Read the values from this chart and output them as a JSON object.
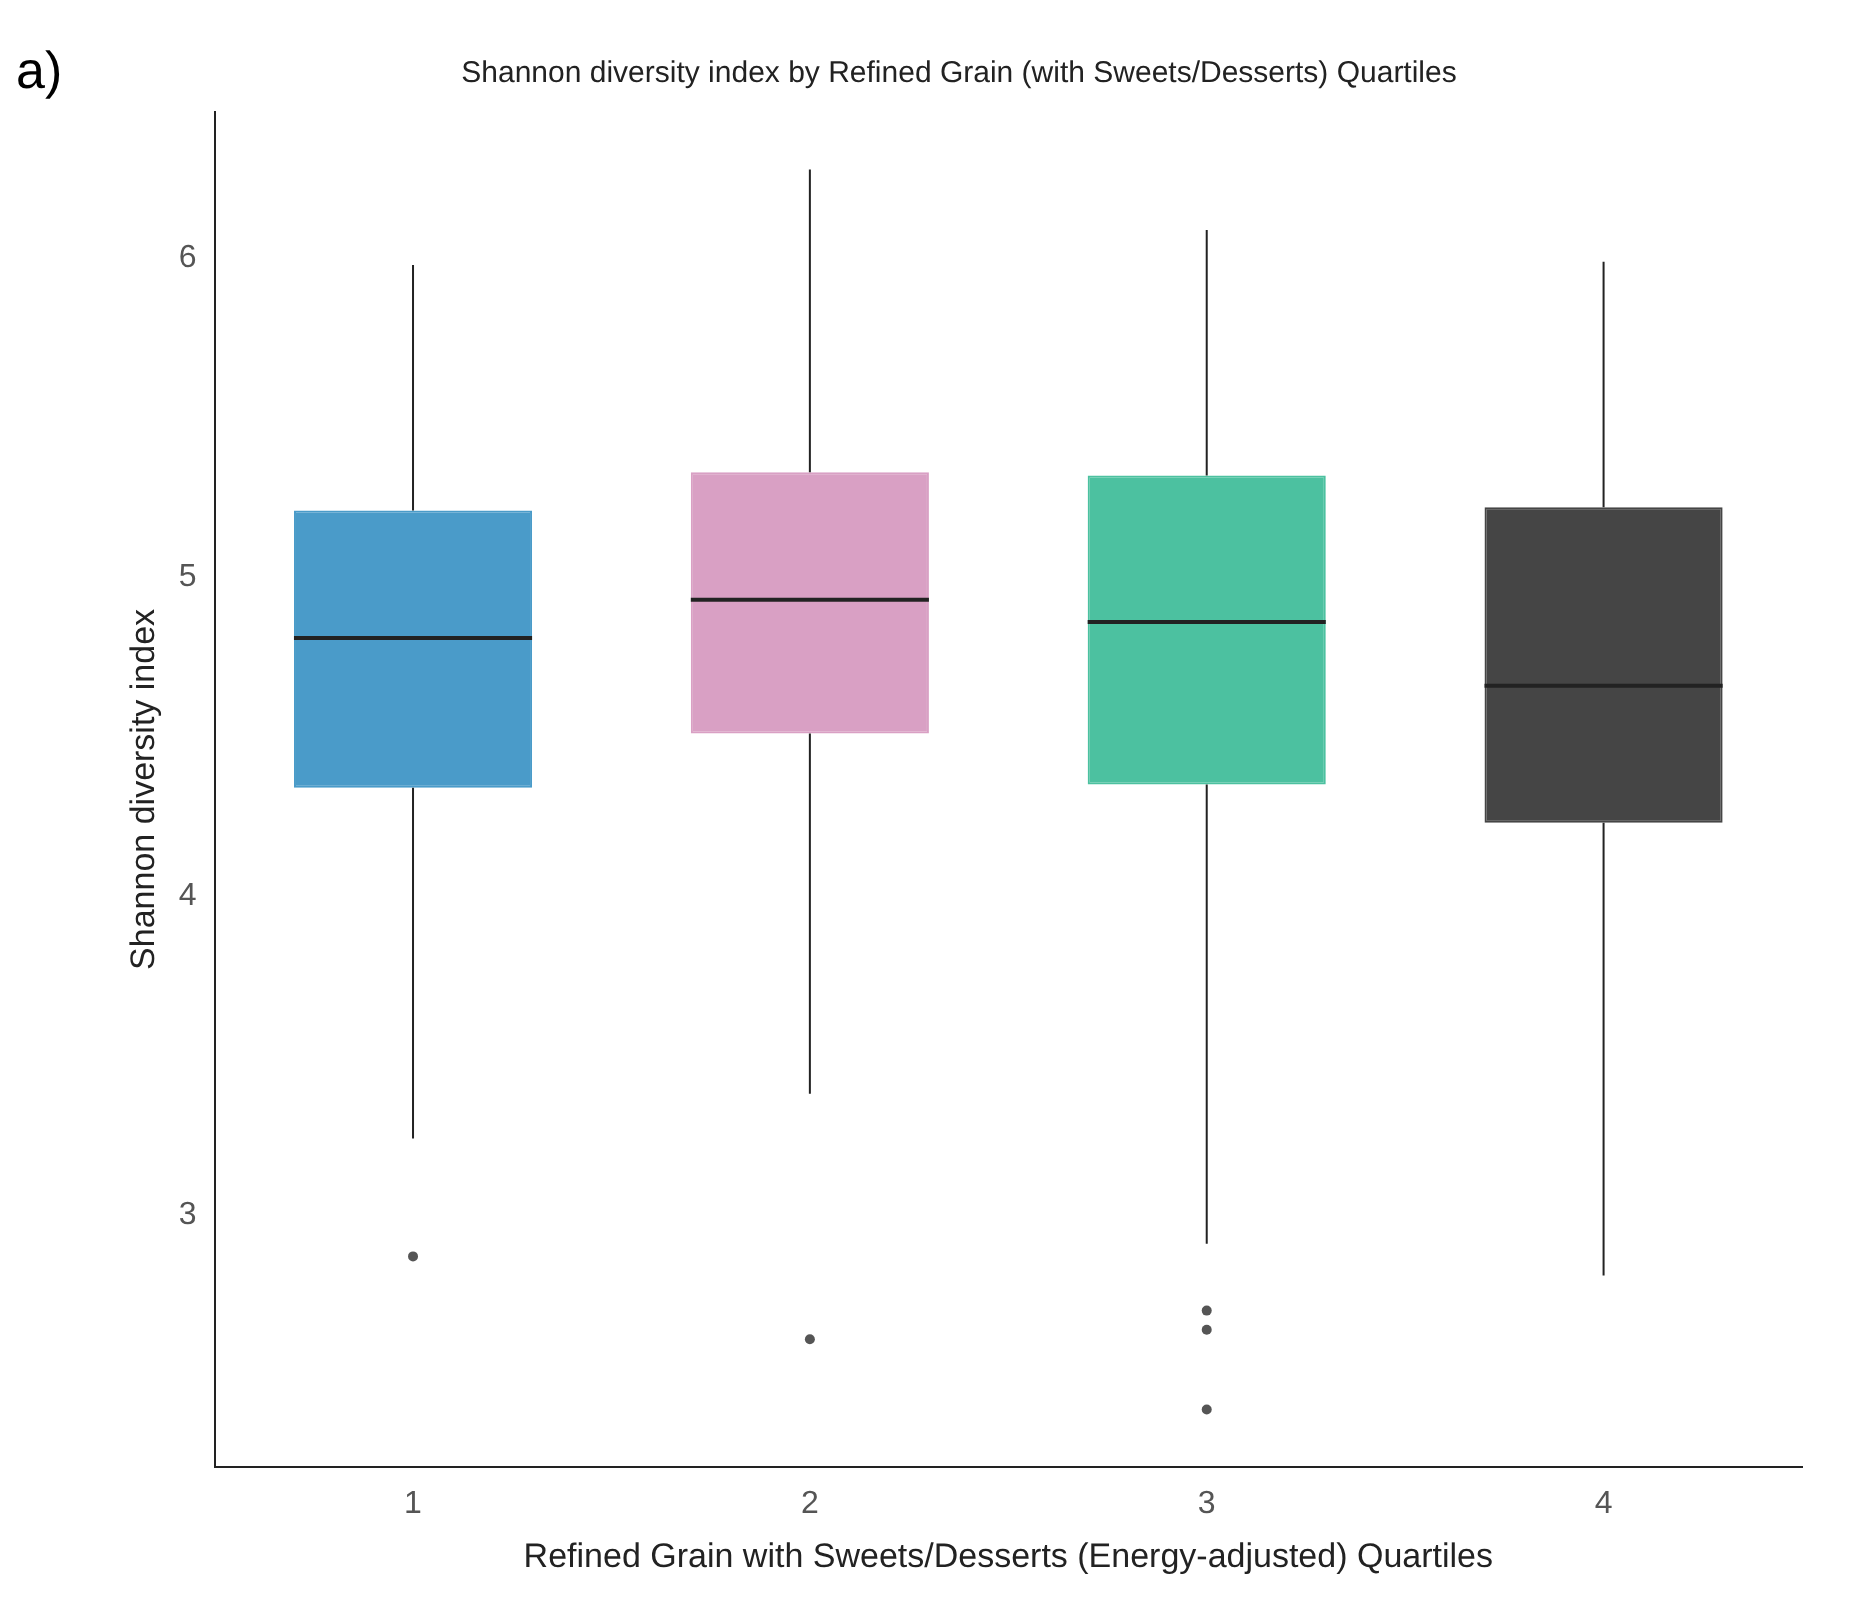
{
  "chart_data": {
    "type": "box",
    "title": "Shannon diversity index by Refined Grain (with Sweets/Desserts) Quartiles",
    "xlabel": "Refined Grain with Sweets/Desserts (Energy-adjusted) Quartiles",
    "ylabel": "Shannon diversity index",
    "annotations": [
      "a)"
    ],
    "categories": [
      "1",
      "2",
      "3",
      "4"
    ],
    "colors": [
      "#4a9bc9",
      "#d9a0c4",
      "#4cc1a0",
      "#454545"
    ],
    "boxes": [
      {
        "low": 3.24,
        "q1": 4.34,
        "median": 4.81,
        "q3": 5.21,
        "high": 5.98,
        "outliers": [
          2.87
        ]
      },
      {
        "low": 3.38,
        "q1": 4.51,
        "median": 4.93,
        "q3": 5.33,
        "high": 6.28,
        "outliers": [
          2.61
        ]
      },
      {
        "low": 2.91,
        "q1": 4.35,
        "median": 4.86,
        "q3": 5.32,
        "high": 6.09,
        "outliers": [
          2.7,
          2.64,
          2.39
        ]
      },
      {
        "low": 2.81,
        "q1": 4.23,
        "median": 4.66,
        "q3": 5.22,
        "high": 5.99
      }
    ],
    "ylim": [
      2.21,
      6.46
    ],
    "yticks": [
      3,
      4,
      5,
      6
    ],
    "grid": false,
    "legend": false
  }
}
